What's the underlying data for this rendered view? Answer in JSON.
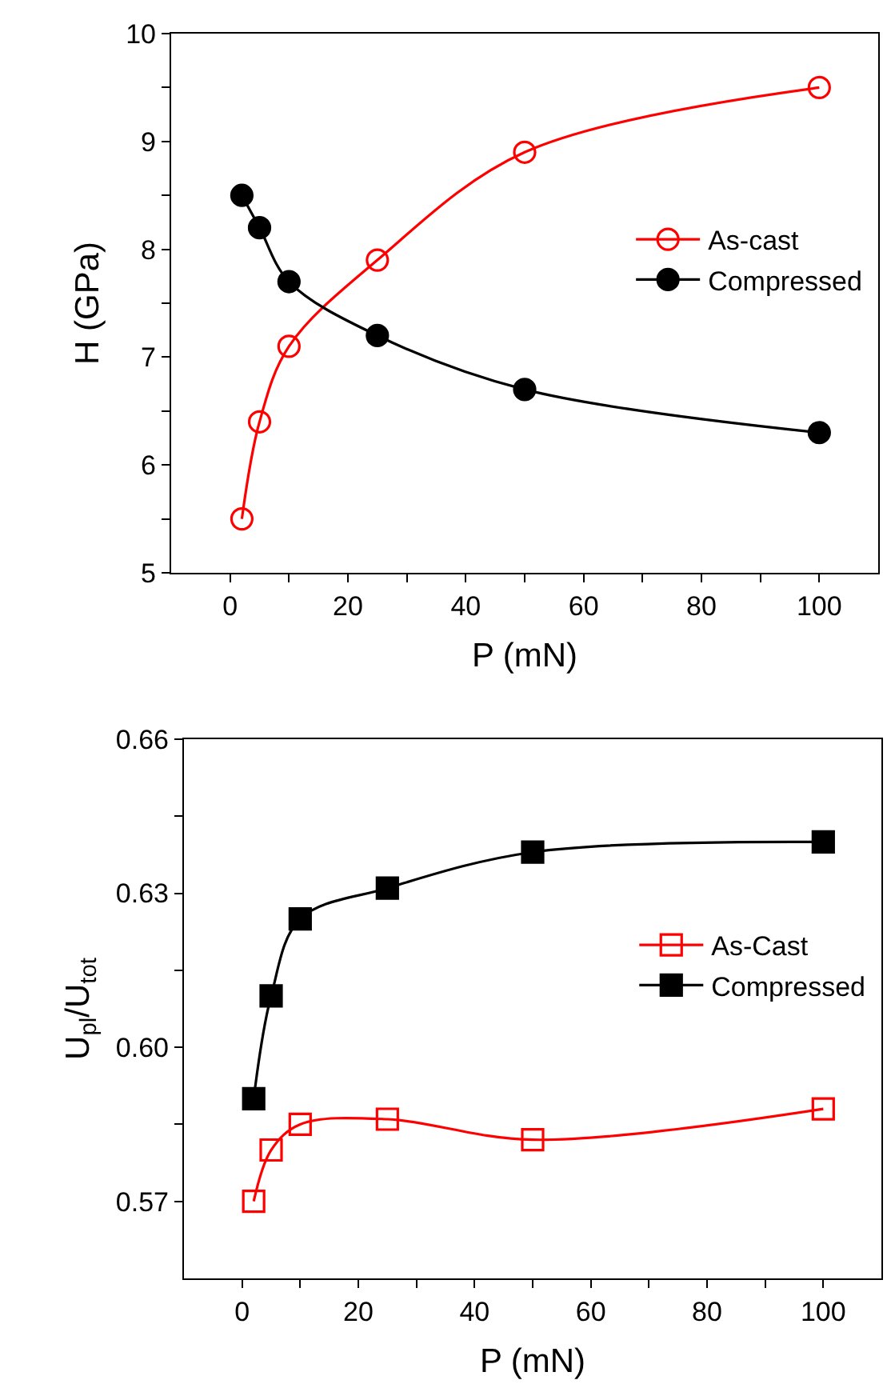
{
  "chart_data": [
    {
      "type": "line",
      "xlabel": "P (mN)",
      "ylabel": "H (GPa)",
      "x": [
        2,
        5,
        10,
        25,
        50,
        100
      ],
      "series": [
        {
          "name": "As-cast",
          "color": "#ff0000",
          "marker": "circle",
          "values": [
            5.5,
            6.4,
            7.1,
            7.9,
            8.9,
            9.5
          ]
        },
        {
          "name": "Compressed",
          "color": "#000000",
          "marker": "circle",
          "values": [
            8.5,
            8.2,
            7.7,
            7.2,
            6.7,
            6.3
          ]
        }
      ],
      "xlim": [
        -10,
        110
      ],
      "ylim": [
        5,
        10
      ],
      "xticks": [
        0,
        {
          "value": 10,
          "label": null
        },
        20,
        {
          "value": 30,
          "label": null
        },
        40,
        {
          "value": 50,
          "label": null
        },
        60,
        {
          "value": 70,
          "label": null
        },
        80,
        {
          "value": 90,
          "label": null
        },
        100
      ],
      "yticks": [
        5,
        {
          "value": 5.5,
          "label": null
        },
        6,
        {
          "value": 6.5,
          "label": null
        },
        7,
        {
          "value": 7.5,
          "label": null
        },
        8,
        {
          "value": 8.5,
          "label": null
        },
        9,
        {
          "value": 9.5,
          "label": null
        },
        10
      ],
      "legend": "right",
      "line_style": "solid"
    },
    {
      "type": "line",
      "xlabel": "P (mN)",
      "ylabel": "U$_{pl}$/U$_{tot}$",
      "x": [
        2,
        5,
        10,
        25,
        50,
        100
      ],
      "series": [
        {
          "name": "As-Cast",
          "color": "#ff0000",
          "marker": "square",
          "values": [
            0.57,
            0.58,
            0.585,
            0.586,
            0.582,
            0.588
          ]
        },
        {
          "name": "Compressed",
          "color": "#000000",
          "marker": "square",
          "values": [
            0.59,
            0.61,
            0.625,
            0.631,
            0.638,
            0.64
          ]
        }
      ],
      "xlim": [
        -10,
        110
      ],
      "ylim": [
        0.555,
        0.66
      ],
      "xticks": [
        0,
        {
          "value": 10,
          "label": null
        },
        20,
        {
          "value": 30,
          "label": null
        },
        40,
        {
          "value": 50,
          "label": null
        },
        60,
        {
          "value": 70,
          "label": null
        },
        80,
        {
          "value": 90,
          "label": null
        },
        100
      ],
      "yticks": [
        {
          "value": 0.57,
          "label": "0.57"
        },
        {
          "value": 0.585,
          "label": null
        },
        {
          "value": 0.6,
          "label": "0.60"
        },
        {
          "value": 0.615,
          "label": null
        },
        {
          "value": 0.63,
          "label": "0.63"
        },
        {
          "value": 0.645,
          "label": null
        },
        {
          "value": 0.66,
          "label": "0.66"
        }
      ],
      "legend": "right",
      "line_style": "solid"
    }
  ]
}
